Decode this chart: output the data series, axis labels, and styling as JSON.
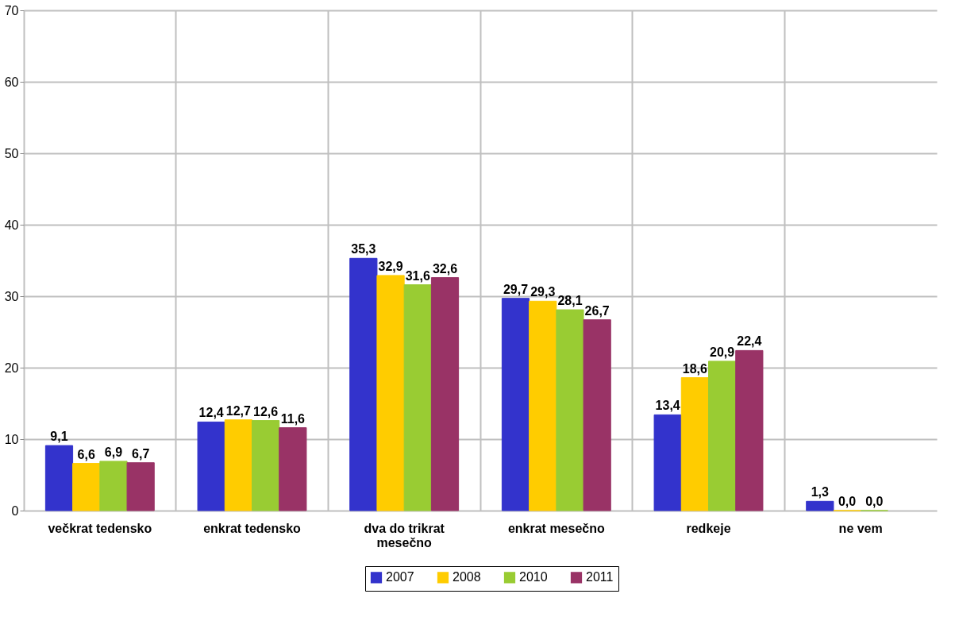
{
  "chart_data": {
    "type": "bar",
    "categories": [
      "večkrat tedensko",
      "enkrat tedensko",
      "dva do trikrat mesečno",
      "enkrat mesečno",
      "redkeje",
      "ne vem"
    ],
    "series": [
      {
        "name": "2007",
        "color": "#3333cc",
        "values": [
          9.1,
          12.4,
          35.3,
          29.7,
          13.4,
          1.3
        ],
        "value_labels": [
          "9,1",
          "12,4",
          "35,3",
          "29,7",
          "13,4",
          "1,3"
        ]
      },
      {
        "name": "2008",
        "color": "#ffcc00",
        "values": [
          6.6,
          12.7,
          32.9,
          29.3,
          18.6,
          0.0
        ],
        "value_labels": [
          "6,6",
          "12,7",
          "32,9",
          "29,3",
          "18,6",
          "0,0"
        ]
      },
      {
        "name": "2010",
        "color": "#99cc33",
        "values": [
          6.9,
          12.6,
          31.6,
          28.1,
          20.9,
          0.0
        ],
        "value_labels": [
          "6,9",
          "12,6",
          "31,6",
          "28,1",
          "20,9",
          "0,0"
        ]
      },
      {
        "name": "2011",
        "color": "#993366",
        "values": [
          6.7,
          11.6,
          32.6,
          26.7,
          22.4,
          null
        ],
        "value_labels": [
          "6,7",
          "11,6",
          "32,6",
          "26,7",
          "22,4",
          null
        ]
      }
    ],
    "ylim": [
      0,
      70
    ],
    "yticks": [
      0,
      10,
      20,
      30,
      40,
      50,
      60,
      70
    ],
    "grid": true,
    "legend": "bottom"
  }
}
